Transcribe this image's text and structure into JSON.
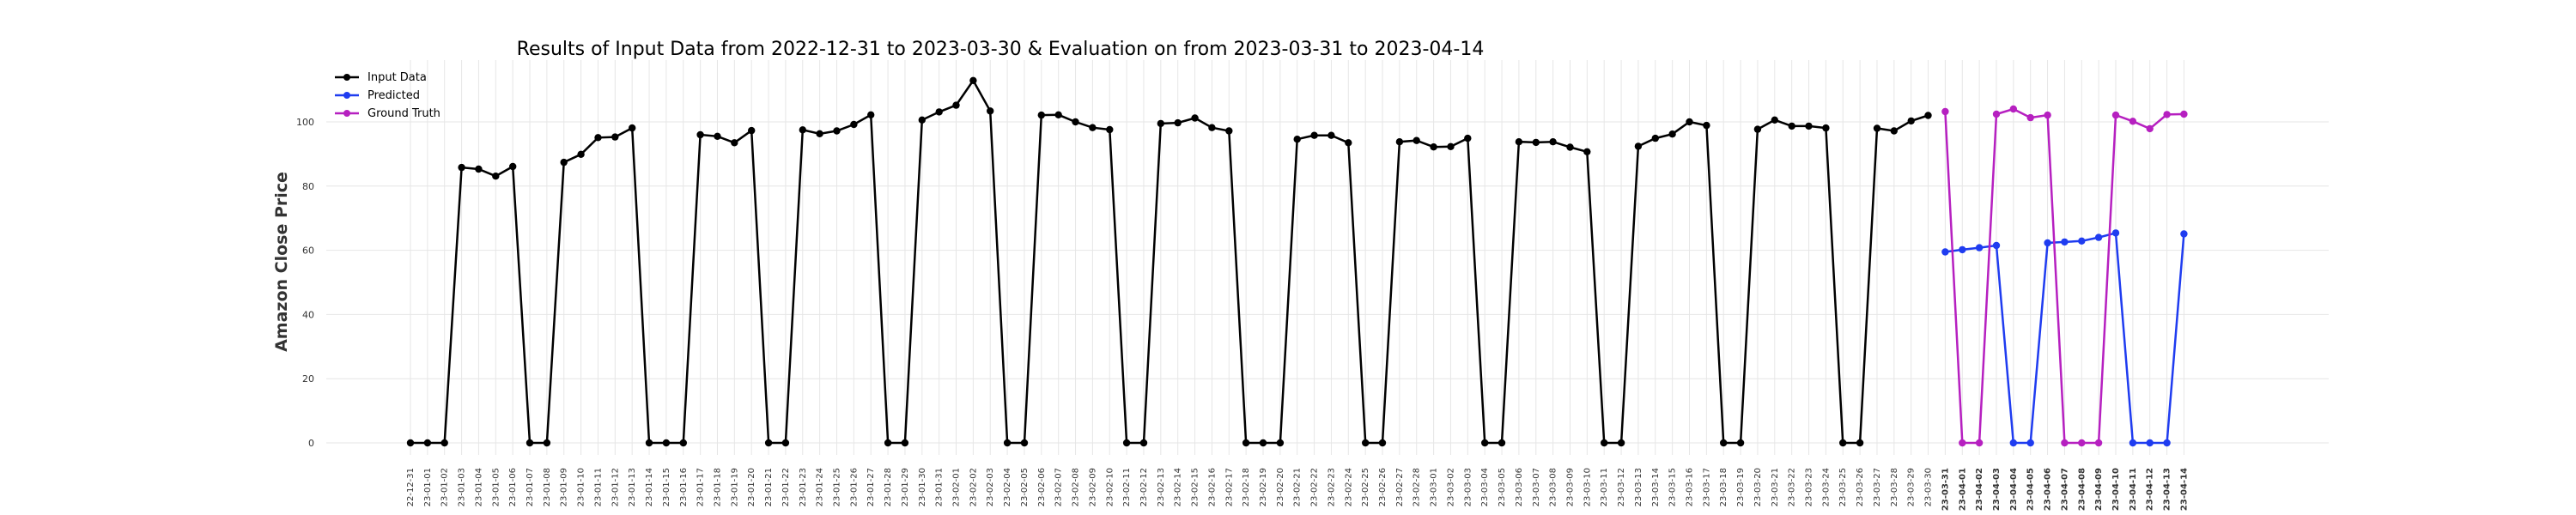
{
  "chart_data": {
    "type": "line",
    "title": "Results of Input Data from 2022-12-31 to 2023-03-30 & Evaluation on from 2023-03-31 to 2023-04-14",
    "xlabel": "",
    "ylabel": "Amazon Close Price",
    "ylim": [
      -5,
      120
    ],
    "yticks": [
      0,
      20,
      40,
      60,
      80,
      100
    ],
    "grid": true,
    "legend_position": "top-left",
    "x_labels": [
      "2022-12-31",
      "2023-01-01",
      "2023-01-02",
      "2023-01-03",
      "2023-01-04",
      "2023-01-05",
      "2023-01-06",
      "2023-01-07",
      "2023-01-08",
      "2023-01-09",
      "2023-01-10",
      "2023-01-11",
      "2023-01-12",
      "2023-01-13",
      "2023-01-14",
      "2023-01-15",
      "2023-01-16",
      "2023-01-17",
      "2023-01-18",
      "2023-01-19",
      "2023-01-20",
      "2023-01-21",
      "2023-01-22",
      "2023-01-23",
      "2023-01-24",
      "2023-01-25",
      "2023-01-26",
      "2023-01-27",
      "2023-01-28",
      "2023-01-29",
      "2023-01-30",
      "2023-01-31",
      "2023-02-01",
      "2023-02-02",
      "2023-02-03",
      "2023-02-04",
      "2023-02-05",
      "2023-02-06",
      "2023-02-07",
      "2023-02-08",
      "2023-02-09",
      "2023-02-10",
      "2023-02-11",
      "2023-02-12",
      "2023-02-13",
      "2023-02-14",
      "2023-02-15",
      "2023-02-16",
      "2023-02-17",
      "2023-02-18",
      "2023-02-19",
      "2023-02-20",
      "2023-02-21",
      "2023-02-22",
      "2023-02-23",
      "2023-02-24",
      "2023-02-25",
      "2023-02-26",
      "2023-02-27",
      "2023-02-28",
      "2023-03-01",
      "2023-03-02",
      "2023-03-03",
      "2023-03-04",
      "2023-03-05",
      "2023-03-06",
      "2023-03-07",
      "2023-03-08",
      "2023-03-09",
      "2023-03-10",
      "2023-03-11",
      "2023-03-12",
      "2023-03-13",
      "2023-03-14",
      "2023-03-15",
      "2023-03-16",
      "2023-03-17",
      "2023-03-18",
      "2023-03-19",
      "2023-03-20",
      "2023-03-21",
      "2023-03-22",
      "2023-03-23",
      "2023-03-24",
      "2023-03-25",
      "2023-03-26",
      "2023-03-27",
      "2023-03-28",
      "2023-03-29",
      "2023-03-30",
      "2023-03-31",
      "2023-04-01",
      "2023-04-02",
      "2023-04-03",
      "2023-04-04",
      "2023-04-05",
      "2023-04-06",
      "2023-04-07",
      "2023-04-08",
      "2023-04-09",
      "2023-04-10",
      "2023-04-11",
      "2023-04-12",
      "2023-04-13",
      "2023-04-14"
    ],
    "x_labels_shown": [
      "22-12-31",
      "23-01-01",
      "23-01-02",
      "23-01-03",
      "23-01-04",
      "23-01-05",
      "23-01-06",
      "23-01-07",
      "23-01-08",
      "23-01-09",
      "23-01-10",
      "23-01-11",
      "23-01-12",
      "23-01-13",
      "23-01-14",
      "23-01-15",
      "23-01-16",
      "23-01-17",
      "23-01-18",
      "23-01-19",
      "23-01-20",
      "23-01-21",
      "23-01-22",
      "23-01-23",
      "23-01-24",
      "23-01-25",
      "23-01-26",
      "23-01-27",
      "23-01-28",
      "23-01-29",
      "23-01-30",
      "23-01-31",
      "23-02-01",
      "23-02-02",
      "23-02-03",
      "23-02-04",
      "23-02-05",
      "23-02-06",
      "23-02-07",
      "23-02-08",
      "23-02-09",
      "23-02-10",
      "23-02-11",
      "23-02-12",
      "23-02-13",
      "23-02-14",
      "23-02-15",
      "23-02-16",
      "23-02-17",
      "23-02-18",
      "23-02-19",
      "23-02-20",
      "23-02-21",
      "23-02-22",
      "23-02-23",
      "23-02-24",
      "23-02-25",
      "23-02-26",
      "23-02-27",
      "23-02-28",
      "23-03-01",
      "23-03-02",
      "23-03-03",
      "23-03-04",
      "23-03-05",
      "23-03-06",
      "23-03-07",
      "23-03-08",
      "23-03-09",
      "23-03-10",
      "23-03-11",
      "23-03-12",
      "23-03-13",
      "23-03-14",
      "23-03-15",
      "23-03-16",
      "23-03-17",
      "23-03-18",
      "23-03-19",
      "23-03-20",
      "23-03-21",
      "23-03-22",
      "23-03-23",
      "23-03-24",
      "23-03-25",
      "23-03-26",
      "23-03-27",
      "23-03-28",
      "23-03-29",
      "23-03-30",
      "23-03-31",
      "23-04-01",
      "23-04-02",
      "23-04-03",
      "23-04-04",
      "23-04-05",
      "23-04-06",
      "23-04-07",
      "23-04-08",
      "23-04-09",
      "23-04-10",
      "23-04-11",
      "23-04-12",
      "23-04-13",
      "23-04-14"
    ],
    "series": [
      {
        "name": "Input Data",
        "color": "#000000",
        "x": [
          "2022-12-31",
          "2023-01-01",
          "2023-01-02",
          "2023-01-03",
          "2023-01-04",
          "2023-01-05",
          "2023-01-06",
          "2023-01-07",
          "2023-01-08",
          "2023-01-09",
          "2023-01-10",
          "2023-01-11",
          "2023-01-12",
          "2023-01-13",
          "2023-01-14",
          "2023-01-15",
          "2023-01-16",
          "2023-01-17",
          "2023-01-18",
          "2023-01-19",
          "2023-01-20",
          "2023-01-21",
          "2023-01-22",
          "2023-01-23",
          "2023-01-24",
          "2023-01-25",
          "2023-01-26",
          "2023-01-27",
          "2023-01-28",
          "2023-01-29",
          "2023-01-30",
          "2023-01-31",
          "2023-02-01",
          "2023-02-02",
          "2023-02-03",
          "2023-02-04",
          "2023-02-05",
          "2023-02-06",
          "2023-02-07",
          "2023-02-08",
          "2023-02-09",
          "2023-02-10",
          "2023-02-11",
          "2023-02-12",
          "2023-02-13",
          "2023-02-14",
          "2023-02-15",
          "2023-02-16",
          "2023-02-17",
          "2023-02-18",
          "2023-02-19",
          "2023-02-20",
          "2023-02-21",
          "2023-02-22",
          "2023-02-23",
          "2023-02-24",
          "2023-02-25",
          "2023-02-26",
          "2023-02-27",
          "2023-02-28",
          "2023-03-01",
          "2023-03-02",
          "2023-03-03",
          "2023-03-04",
          "2023-03-05",
          "2023-03-06",
          "2023-03-07",
          "2023-03-08",
          "2023-03-09",
          "2023-03-10",
          "2023-03-11",
          "2023-03-12",
          "2023-03-13",
          "2023-03-14",
          "2023-03-15",
          "2023-03-16",
          "2023-03-17",
          "2023-03-18",
          "2023-03-19",
          "2023-03-20",
          "2023-03-21",
          "2023-03-22",
          "2023-03-23",
          "2023-03-24",
          "2023-03-25",
          "2023-03-26",
          "2023-03-27",
          "2023-03-28",
          "2023-03-29",
          "2023-03-30"
        ],
        "values": [
          0,
          0,
          0,
          85.8,
          85.3,
          83.1,
          86.1,
          0,
          0,
          87.4,
          89.9,
          95.1,
          95.3,
          98.1,
          0,
          0,
          0,
          96.0,
          95.5,
          93.5,
          97.3,
          0,
          0,
          97.5,
          96.3,
          97.2,
          99.2,
          102.2,
          0,
          0,
          100.6,
          103.1,
          105.2,
          112.9,
          103.4,
          0,
          0,
          102.1,
          102.2,
          100.0,
          98.2,
          97.6,
          0,
          0,
          99.5,
          99.7,
          101.2,
          98.2,
          97.2,
          0,
          0,
          0,
          94.6,
          95.8,
          95.8,
          93.5,
          0,
          0,
          93.8,
          94.2,
          92.2,
          92.3,
          94.9,
          0,
          0,
          93.8,
          93.6,
          93.8,
          92.1,
          90.7,
          0,
          0,
          92.4,
          94.9,
          96.2,
          100.0,
          98.9,
          0,
          0,
          97.7,
          100.6,
          98.7,
          98.7,
          98.1,
          0,
          0,
          98.0,
          97.2,
          100.3,
          102.0
        ]
      },
      {
        "name": "Predicted",
        "color": "#1f3cf0",
        "x": [
          "2023-03-31",
          "2023-04-01",
          "2023-04-02",
          "2023-04-03",
          "2023-04-04",
          "2023-04-05",
          "2023-04-06",
          "2023-04-07",
          "2023-04-08",
          "2023-04-09",
          "2023-04-10",
          "2023-04-11",
          "2023-04-12",
          "2023-04-13",
          "2023-04-14"
        ],
        "values": [
          59.5,
          60.2,
          60.8,
          61.5,
          0,
          0,
          62.3,
          62.6,
          62.9,
          64.0,
          65.4,
          0,
          0,
          0,
          65.1
        ]
      },
      {
        "name": "Ground Truth",
        "color": "#b620c0",
        "x": [
          "2023-03-31",
          "2023-04-01",
          "2023-04-02",
          "2023-04-03",
          "2023-04-04",
          "2023-04-05",
          "2023-04-06",
          "2023-04-07",
          "2023-04-08",
          "2023-04-09",
          "2023-04-10",
          "2023-04-11",
          "2023-04-12",
          "2023-04-13",
          "2023-04-14"
        ],
        "values": [
          103.2,
          0,
          0,
          102.4,
          104.0,
          101.3,
          102.1,
          0,
          0,
          0,
          102.1,
          100.2,
          97.9,
          102.3,
          102.4
        ]
      }
    ]
  }
}
